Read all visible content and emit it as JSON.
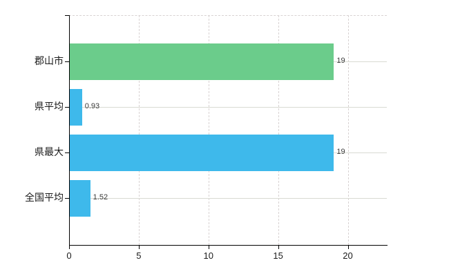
{
  "chart_data": {
    "type": "bar",
    "orientation": "horizontal",
    "title": "",
    "categories": [
      "郡山市",
      "県平均",
      "県最大",
      "全国平均"
    ],
    "values": [
      19,
      0.93,
      19,
      1.52
    ],
    "value_labels": [
      "19",
      "0.93",
      "19",
      "1.52"
    ],
    "bar_colors": [
      "#6bcc8b",
      "#3eb9eb",
      "#3eb9eb",
      "#3eb9eb"
    ],
    "x_tick_labels": [
      "0",
      "5",
      "10",
      "15",
      "20"
    ],
    "x_tick_values": [
      0,
      5,
      10,
      15,
      20
    ],
    "xlim": [
      0,
      22.8
    ],
    "xlabel": "",
    "ylabel": "",
    "grid": true,
    "legend": false,
    "colors": {
      "bar_green": "#6bcc8b",
      "bar_blue": "#3eb9eb",
      "axis": "#000000",
      "gridline": "#d8d2d2",
      "category_label": "#1a1a1a",
      "tick_label": "#1a1a1a",
      "value_label": "#3a3a3a",
      "background": "#ffffff"
    }
  }
}
